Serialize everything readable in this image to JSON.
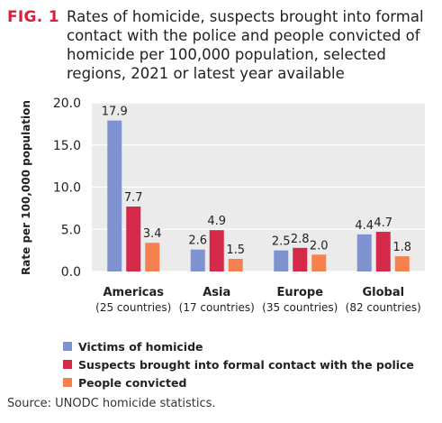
{
  "figure": {
    "label": "FIG. 1",
    "source": "Source: UNODC homicide statistics."
  },
  "chart_data": {
    "type": "bar",
    "title": "Rates of homicide, suspects brought into formal contact with the police and people convicted of homicide per 100,000 population, selected regions, 2021 or latest year available",
    "ylabel": "Rate per 100,000 population",
    "xlabel": "",
    "ylim": [
      0,
      20
    ],
    "yticks": [
      "0.0",
      "5.0",
      "10.0",
      "15.0",
      "20.0"
    ],
    "grid": true,
    "legend_position": "bottom-left",
    "categories": [
      "Americas",
      "Asia",
      "Europe",
      "Global"
    ],
    "category_sublabels": [
      "(25 countries)",
      "(17 countries)",
      "(35 countries)",
      "(82 countries)"
    ],
    "series": [
      {
        "name": "Victims of homicide",
        "color": "#7f93d1",
        "values": [
          17.9,
          2.6,
          2.5,
          4.4
        ],
        "labels": [
          "17.9",
          "2.6",
          "2.5",
          "4.4"
        ]
      },
      {
        "name": "Suspects brought into formal contact with the police",
        "color": "#d5294a",
        "values": [
          7.7,
          4.9,
          2.8,
          4.7
        ],
        "labels": [
          "7.7",
          "4.9",
          "2.8",
          "4.7"
        ]
      },
      {
        "name": "People convicted",
        "color": "#f5814f",
        "values": [
          3.4,
          1.5,
          2.0,
          1.8
        ],
        "labels": [
          "3.4",
          "1.5",
          "2.0",
          "1.8"
        ]
      }
    ]
  }
}
